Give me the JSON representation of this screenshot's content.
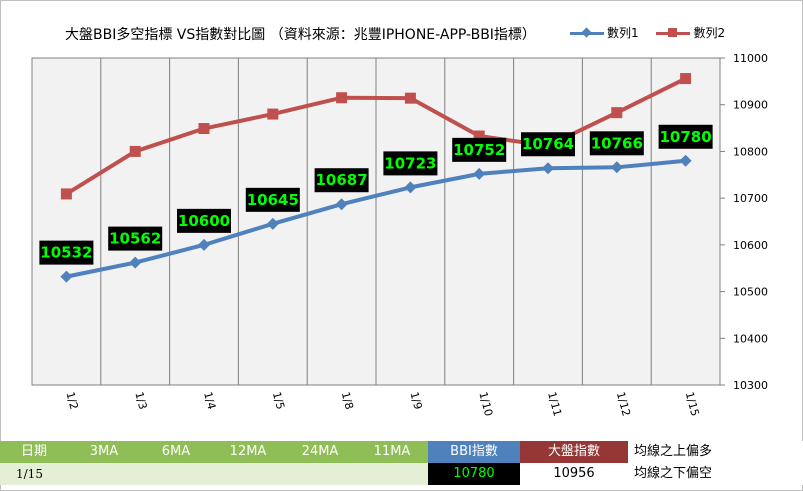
{
  "chart_data": {
    "type": "line",
    "title": "大盤BBI多空指標 VS指數對比圖 （資料來源：兆豐IPHONE-APP-BBI指標）",
    "categories": [
      "1/2",
      "1/3",
      "1/4",
      "1/5",
      "1/8",
      "1/9",
      "1/10",
      "1/11",
      "1/12",
      "1/15"
    ],
    "ylim": [
      10300,
      11000
    ],
    "yticks": [
      "10300",
      "10400",
      "10500",
      "10600",
      "10700",
      "10800",
      "10900",
      "11000"
    ],
    "legend_position": "top-right",
    "grid": "vertical",
    "series": [
      {
        "name": "數列1",
        "color": "#4f81bd",
        "marker": "diamond",
        "values": [
          10532,
          10562,
          10600,
          10645,
          10687,
          10723,
          10752,
          10764,
          10766,
          10780
        ],
        "labels": [
          "10532",
          "10562",
          "10600",
          "10645",
          "10687",
          "10723",
          "10752",
          "10764",
          "10766",
          "10780"
        ]
      },
      {
        "name": "數列2",
        "color": "#c0504d",
        "marker": "square",
        "values": [
          10709,
          10800,
          10849,
          10880,
          10915,
          10914,
          10833,
          10812,
          10883,
          10956
        ]
      }
    ]
  },
  "table": {
    "headers": [
      "日期",
      "3MA",
      "6MA",
      "12MA",
      "24MA",
      "11MA",
      "BBI指數",
      "大盤指數"
    ],
    "row": {
      "date": "1/15",
      "bbi": "10780",
      "tai": "10956"
    },
    "notes": [
      "均線之上偏多",
      "均線之下偏空"
    ]
  },
  "colors": {
    "plot_bg": "#f2f2f2",
    "grid": "#808080"
  }
}
